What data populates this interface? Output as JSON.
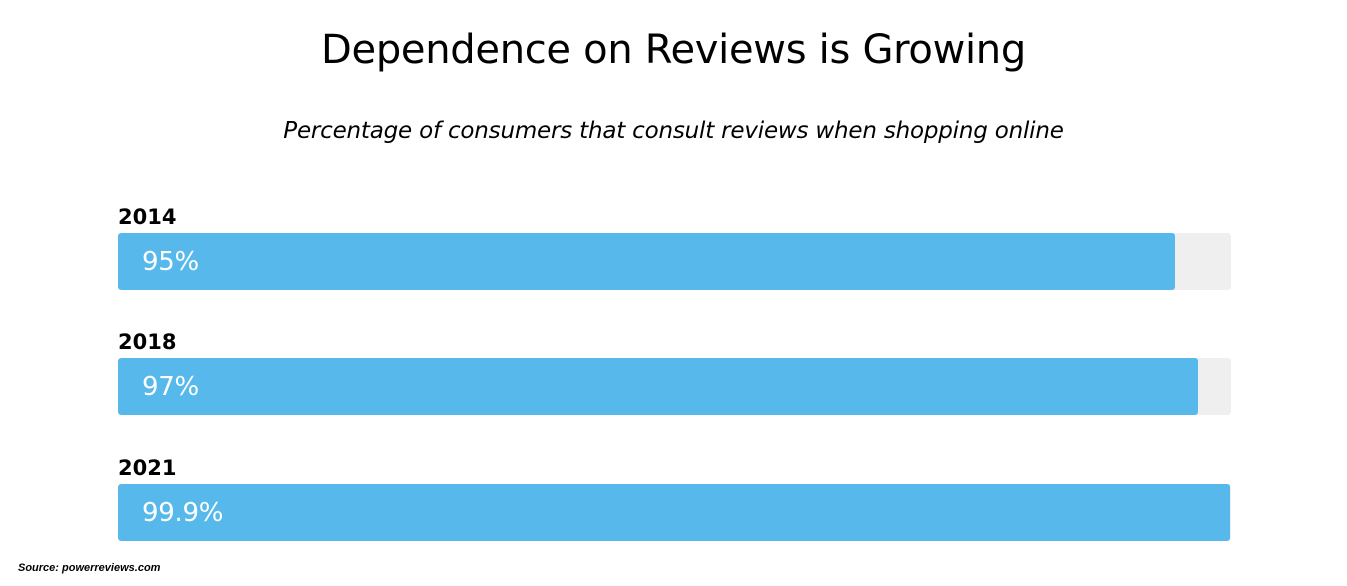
{
  "chart_data": {
    "type": "bar",
    "orientation": "horizontal",
    "title": "Dependence on Reviews is Growing",
    "subtitle": "Percentage of consumers that consult reviews when shopping online",
    "categories": [
      "2014",
      "2018",
      "2021"
    ],
    "values": [
      95,
      97,
      99.9
    ],
    "value_labels": [
      "95%",
      "97%",
      "99.9%"
    ],
    "xlim": [
      0,
      100
    ],
    "grid": false,
    "source": "Source: powerreviews.com"
  },
  "colors": {
    "bar": "#57b9eb",
    "track": "#efefef",
    "value_text": "#ffffff"
  }
}
